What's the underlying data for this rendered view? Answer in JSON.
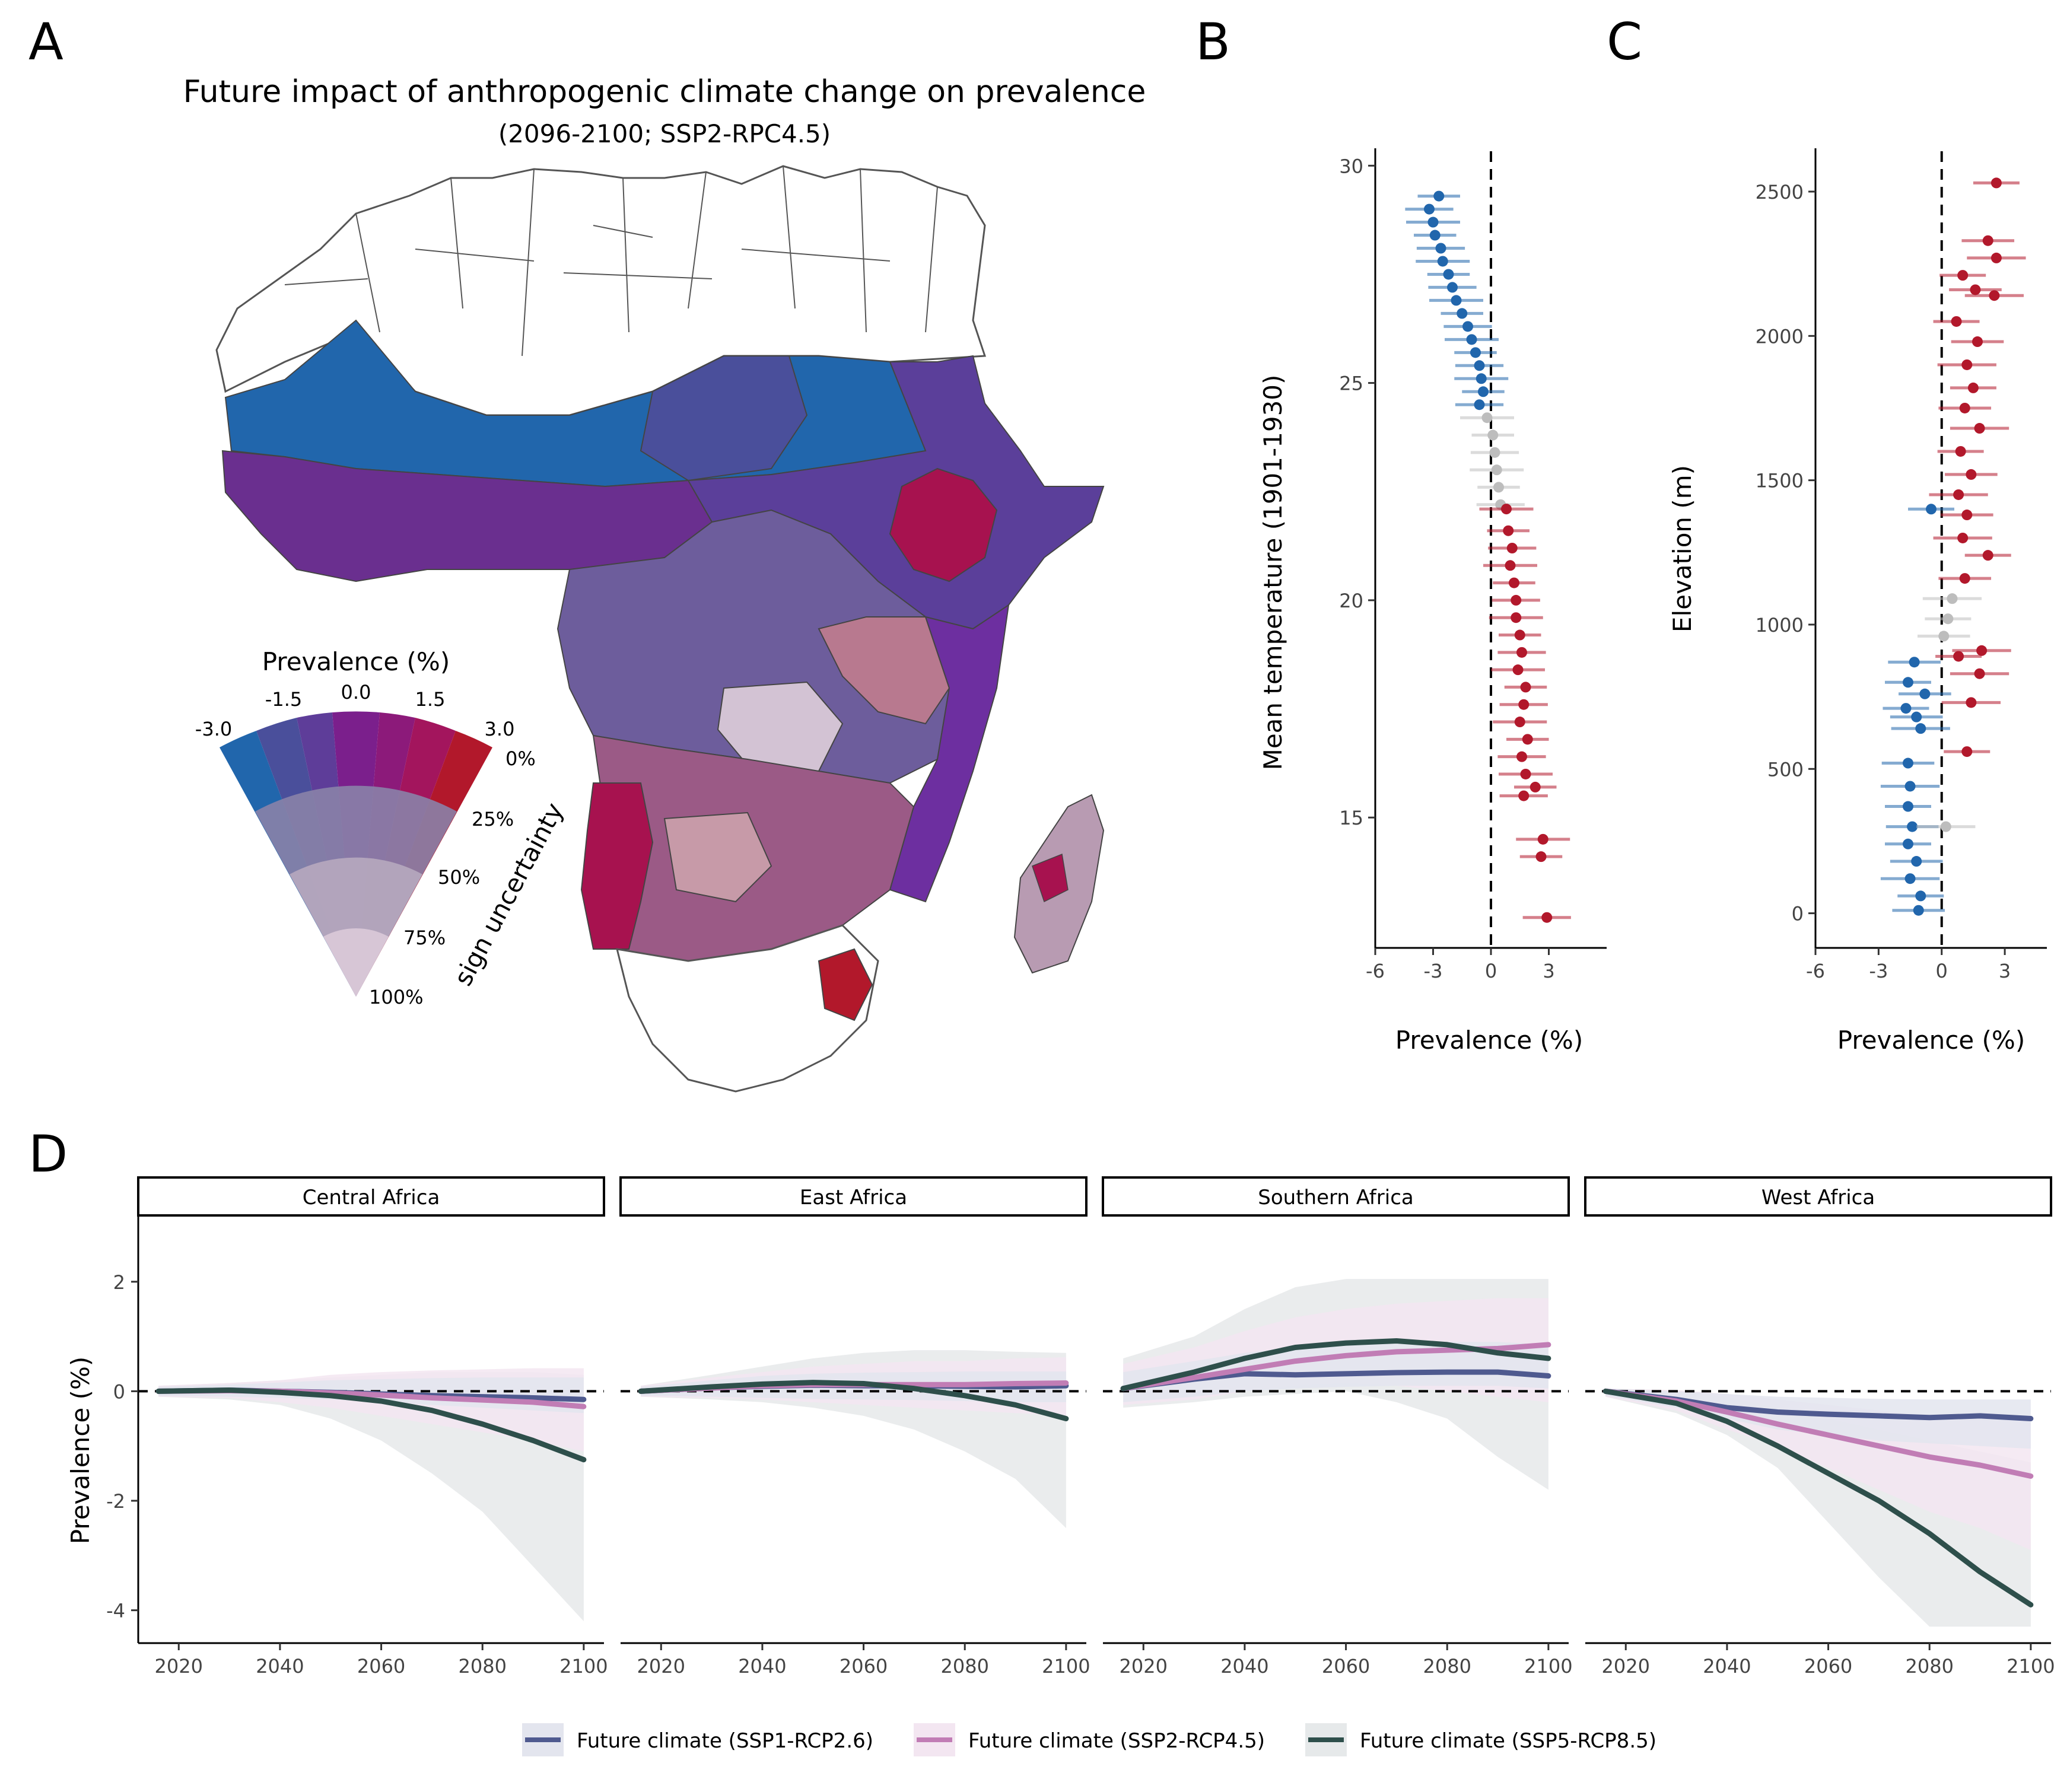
{
  "panels": {
    "a": "A",
    "b": "B",
    "c": "C",
    "d": "D"
  },
  "map": {
    "title": "Future impact of anthropogenic climate change on prevalence",
    "subtitle": "(2096-2100; SSP2-RPC4.5)",
    "legend": {
      "title": "Prevalence (%)",
      "value_ticks": [
        "-3.0",
        "-1.5",
        "0.0",
        "1.5",
        "3.0"
      ],
      "uncertainty_ticks": [
        "0%",
        "25%",
        "50%",
        "75%",
        "100%"
      ],
      "uncertainty_label": "sign uncertainty"
    },
    "colors": {
      "neg": "#2166ac",
      "mid": "#7b1f8c",
      "pos": "#b2182b",
      "uncertain": "#d7c6d6",
      "neutral": "#ffffff"
    }
  },
  "chart_data": [
    {
      "type": "scatter",
      "panel": "B",
      "xlabel": "Prevalence (%)",
      "ylabel": "Mean temperature (1901-1930)",
      "xlim": [
        -6,
        6
      ],
      "ylim": [
        12,
        30.4
      ],
      "xticks": [
        -6,
        -3,
        0,
        3
      ],
      "yticks": [
        15,
        20,
        25,
        30
      ],
      "reference_line_x": 0,
      "colors": {
        "negative": "#2166ac",
        "uncertain": "#bdbdbd",
        "positive": "#b2182b"
      },
      "points": [
        {
          "y": 29.3,
          "x": -2.7
        },
        {
          "y": 29.0,
          "x": -3.2
        },
        {
          "y": 28.7,
          "x": -3.0
        },
        {
          "y": 28.4,
          "x": -2.9
        },
        {
          "y": 28.1,
          "x": -2.6
        },
        {
          "y": 27.8,
          "x": -2.5
        },
        {
          "y": 27.5,
          "x": -2.2
        },
        {
          "y": 27.2,
          "x": -2.0
        },
        {
          "y": 26.9,
          "x": -1.8
        },
        {
          "y": 26.6,
          "x": -1.5
        },
        {
          "y": 26.3,
          "x": -1.2
        },
        {
          "y": 26.0,
          "x": -1.0
        },
        {
          "y": 25.7,
          "x": -0.8
        },
        {
          "y": 25.4,
          "x": -0.6
        },
        {
          "y": 25.1,
          "x": -0.5
        },
        {
          "y": 24.8,
          "x": -0.4
        },
        {
          "y": 24.5,
          "x": -0.6
        },
        {
          "y": 24.2,
          "x": -0.2
        },
        {
          "y": 23.8,
          "x": 0.1
        },
        {
          "y": 23.4,
          "x": 0.2
        },
        {
          "y": 23.0,
          "x": 0.3
        },
        {
          "y": 22.6,
          "x": 0.4
        },
        {
          "y": 22.2,
          "x": 0.5
        },
        {
          "y": 22.1,
          "x": 0.8
        },
        {
          "y": 21.6,
          "x": 0.9
        },
        {
          "y": 21.2,
          "x": 1.1
        },
        {
          "y": 20.8,
          "x": 1.0
        },
        {
          "y": 20.4,
          "x": 1.2
        },
        {
          "y": 20.0,
          "x": 1.3
        },
        {
          "y": 19.6,
          "x": 1.3
        },
        {
          "y": 19.2,
          "x": 1.5
        },
        {
          "y": 18.8,
          "x": 1.6
        },
        {
          "y": 18.4,
          "x": 1.4
        },
        {
          "y": 18.0,
          "x": 1.8
        },
        {
          "y": 17.6,
          "x": 1.7
        },
        {
          "y": 17.2,
          "x": 1.5
        },
        {
          "y": 16.8,
          "x": 1.9
        },
        {
          "y": 16.4,
          "x": 1.6
        },
        {
          "y": 16.0,
          "x": 1.8
        },
        {
          "y": 15.7,
          "x": 2.3
        },
        {
          "y": 15.5,
          "x": 1.7
        },
        {
          "y": 14.5,
          "x": 2.7
        },
        {
          "y": 14.1,
          "x": 2.6
        },
        {
          "y": 12.7,
          "x": 2.9
        }
      ]
    },
    {
      "type": "scatter",
      "panel": "C",
      "xlabel": "Prevalence (%)",
      "ylabel": "Elevation (m)",
      "xlim": [
        -6,
        5
      ],
      "ylim": [
        -120,
        2650
      ],
      "xticks": [
        -6,
        -3,
        0,
        3
      ],
      "yticks": [
        0,
        500,
        1000,
        1500,
        2000,
        2500
      ],
      "reference_line_x": 0,
      "colors": {
        "negative": "#2166ac",
        "uncertain": "#bdbdbd",
        "positive": "#b2182b"
      },
      "points": [
        {
          "y": 2530,
          "x": 2.6
        },
        {
          "y": 2330,
          "x": 2.2
        },
        {
          "y": 2270,
          "x": 2.6
        },
        {
          "y": 2210,
          "x": 1.0
        },
        {
          "y": 2160,
          "x": 1.6
        },
        {
          "y": 2140,
          "x": 2.5
        },
        {
          "y": 2050,
          "x": 0.7
        },
        {
          "y": 1980,
          "x": 1.7
        },
        {
          "y": 1900,
          "x": 1.2
        },
        {
          "y": 1820,
          "x": 1.5
        },
        {
          "y": 1750,
          "x": 1.1
        },
        {
          "y": 1680,
          "x": 1.8
        },
        {
          "y": 1600,
          "x": 0.9
        },
        {
          "y": 1520,
          "x": 1.4
        },
        {
          "y": 1450,
          "x": 0.8
        },
        {
          "y": 1380,
          "x": 1.2
        },
        {
          "y": 1300,
          "x": 1.0
        },
        {
          "y": 1240,
          "x": 2.2
        },
        {
          "y": 1160,
          "x": 1.1
        },
        {
          "y": 1090,
          "x": 0.5
        },
        {
          "y": 1020,
          "x": 0.3
        },
        {
          "y": 960,
          "x": 0.1
        },
        {
          "y": 1400,
          "x": -0.5
        },
        {
          "y": 910,
          "x": 1.9
        },
        {
          "y": 890,
          "x": 0.8
        },
        {
          "y": 870,
          "x": -1.3
        },
        {
          "y": 830,
          "x": 1.8
        },
        {
          "y": 800,
          "x": -1.6
        },
        {
          "y": 760,
          "x": -0.8
        },
        {
          "y": 730,
          "x": 1.4
        },
        {
          "y": 710,
          "x": -1.7
        },
        {
          "y": 680,
          "x": -1.2
        },
        {
          "y": 640,
          "x": -1.0
        },
        {
          "y": 560,
          "x": 1.2
        },
        {
          "y": 520,
          "x": -1.6
        },
        {
          "y": 440,
          "x": -1.5
        },
        {
          "y": 370,
          "x": -1.6
        },
        {
          "y": 300,
          "x": -1.4
        },
        {
          "y": 240,
          "x": -1.6
        },
        {
          "y": 180,
          "x": -1.2
        },
        {
          "y": 120,
          "x": -1.5
        },
        {
          "y": 60,
          "x": -1.0
        },
        {
          "y": 10,
          "x": -1.1
        },
        {
          "y": 300,
          "x": 0.2
        }
      ]
    },
    {
      "type": "line",
      "panel": "D",
      "ylabel": "Prevalence (%)",
      "xlim": [
        2012,
        2104
      ],
      "ylim": [
        -4.6,
        3.2
      ],
      "xticks": [
        2020,
        2040,
        2060,
        2080,
        2100
      ],
      "yticks": [
        -4,
        -2,
        0,
        2
      ],
      "reference_line_y": 0,
      "series_styles": [
        {
          "name": "Future climate (SSP1-RCP2.6)",
          "color": "#4f5a8f",
          "band": "#e3e5ee"
        },
        {
          "name": "Future climate (SSP2-RCP4.5)",
          "color": "#c17db5",
          "band": "#f3e6f1"
        },
        {
          "name": "Future climate (SSP5-RCP8.5)",
          "color": "#2e4f4b",
          "band": "#e6e9ea"
        }
      ],
      "facets": [
        {
          "name": "Central Africa",
          "x": [
            2016,
            2030,
            2040,
            2050,
            2060,
            2070,
            2080,
            2090,
            2100
          ],
          "series": [
            {
              "name": "Future climate (SSP1-RCP2.6)",
              "values": [
                0,
                0.02,
                0.0,
                -0.02,
                -0.05,
                -0.08,
                -0.1,
                -0.12,
                -0.15
              ]
            },
            {
              "name": "Future climate (SSP2-RCP4.5)",
              "values": [
                0,
                0.01,
                0.0,
                -0.03,
                -0.07,
                -0.12,
                -0.16,
                -0.2,
                -0.28
              ]
            },
            {
              "name": "Future climate (SSP5-RCP8.5)",
              "values": [
                0,
                0.02,
                -0.02,
                -0.08,
                -0.18,
                -0.35,
                -0.6,
                -0.9,
                -1.25
              ]
            }
          ],
          "bands": [
            {
              "lo": [
                -0.1,
                -0.15,
                -0.25,
                -0.5,
                -0.9,
                -1.5,
                -2.2,
                -3.2,
                -4.2
              ],
              "hi": [
                0.1,
                0.15,
                0.2,
                0.25,
                0.3,
                0.35,
                0.35,
                0.35,
                0.3
              ]
            },
            {
              "lo": [
                -0.1,
                -0.12,
                -0.2,
                -0.3,
                -0.45,
                -0.6,
                -0.75,
                -0.9,
                -1.1
              ],
              "hi": [
                0.1,
                0.15,
                0.2,
                0.3,
                0.35,
                0.38,
                0.4,
                0.42,
                0.42
              ]
            },
            {
              "lo": [
                -0.08,
                -0.1,
                -0.12,
                -0.15,
                -0.2,
                -0.25,
                -0.3,
                -0.35,
                -0.4
              ],
              "hi": [
                0.08,
                0.12,
                0.16,
                0.2,
                0.22,
                0.24,
                0.25,
                0.25,
                0.25
              ]
            }
          ]
        },
        {
          "name": "East Africa",
          "x": [
            2016,
            2030,
            2040,
            2050,
            2060,
            2070,
            2080,
            2090,
            2100
          ],
          "series": [
            {
              "name": "Future climate (SSP1-RCP2.6)",
              "values": [
                0,
                0.06,
                0.09,
                0.11,
                0.1,
                0.1,
                0.09,
                0.08,
                0.1
              ]
            },
            {
              "name": "Future climate (SSP2-RCP4.5)",
              "values": [
                0,
                0.06,
                0.1,
                0.12,
                0.12,
                0.12,
                0.12,
                0.14,
                0.15
              ]
            },
            {
              "name": "Future climate (SSP5-RCP8.5)",
              "values": [
                0,
                0.08,
                0.13,
                0.16,
                0.14,
                0.05,
                -0.08,
                -0.25,
                -0.5
              ]
            }
          ],
          "bands": [
            {
              "lo": [
                -0.1,
                -0.15,
                -0.2,
                -0.3,
                -0.45,
                -0.7,
                -1.1,
                -1.6,
                -2.5
              ],
              "hi": [
                0.1,
                0.3,
                0.45,
                0.6,
                0.7,
                0.75,
                0.75,
                0.72,
                0.7
              ]
            },
            {
              "lo": [
                -0.1,
                -0.12,
                -0.15,
                -0.2,
                -0.25,
                -0.3,
                -0.35,
                -0.4,
                -0.45
              ],
              "hi": [
                0.1,
                0.25,
                0.35,
                0.45,
                0.5,
                0.55,
                0.55,
                0.6,
                0.62
              ]
            },
            {
              "lo": [
                -0.08,
                -0.1,
                -0.12,
                -0.14,
                -0.15,
                -0.16,
                -0.18,
                -0.2,
                -0.2
              ],
              "hi": [
                0.08,
                0.2,
                0.28,
                0.32,
                0.34,
                0.35,
                0.36,
                0.36,
                0.36
              ]
            }
          ]
        },
        {
          "name": "Southern Africa",
          "x": [
            2016,
            2030,
            2040,
            2050,
            2060,
            2070,
            2080,
            2090,
            2100
          ],
          "series": [
            {
              "name": "Future climate (SSP1-RCP2.6)",
              "values": [
                0.05,
                0.22,
                0.32,
                0.3,
                0.32,
                0.34,
                0.35,
                0.35,
                0.28
              ]
            },
            {
              "name": "Future climate (SSP2-RCP4.5)",
              "values": [
                0.05,
                0.25,
                0.4,
                0.55,
                0.65,
                0.72,
                0.75,
                0.78,
                0.85
              ]
            },
            {
              "name": "Future climate (SSP5-RCP8.5)",
              "values": [
                0.05,
                0.35,
                0.6,
                0.8,
                0.88,
                0.92,
                0.85,
                0.7,
                0.6
              ]
            }
          ],
          "bands": [
            {
              "lo": [
                -0.3,
                -0.2,
                -0.1,
                -0.05,
                0.0,
                -0.2,
                -0.5,
                -1.2,
                -1.8
              ],
              "hi": [
                0.6,
                1.0,
                1.5,
                1.9,
                2.05,
                2.05,
                2.05,
                2.05,
                2.05
              ]
            },
            {
              "lo": [
                -0.25,
                -0.15,
                0.0,
                0.1,
                0.15,
                0.1,
                0.0,
                -0.1,
                -0.2
              ],
              "hi": [
                0.5,
                0.8,
                1.1,
                1.35,
                1.5,
                1.6,
                1.65,
                1.7,
                1.7
              ]
            },
            {
              "lo": [
                -0.2,
                -0.1,
                0.0,
                0.05,
                0.08,
                0.1,
                0.1,
                0.1,
                0.05
              ],
              "hi": [
                0.35,
                0.55,
                0.7,
                0.8,
                0.85,
                0.88,
                0.9,
                0.9,
                0.85
              ]
            }
          ]
        },
        {
          "name": "West Africa",
          "x": [
            2016,
            2030,
            2040,
            2050,
            2060,
            2070,
            2080,
            2090,
            2100
          ],
          "series": [
            {
              "name": "Future climate (SSP1-RCP2.6)",
              "values": [
                0,
                -0.15,
                -0.3,
                -0.38,
                -0.42,
                -0.45,
                -0.48,
                -0.45,
                -0.5
              ]
            },
            {
              "name": "Future climate (SSP2-RCP4.5)",
              "values": [
                0,
                -0.18,
                -0.38,
                -0.6,
                -0.8,
                -1.0,
                -1.2,
                -1.35,
                -1.55
              ]
            },
            {
              "name": "Future climate (SSP5-RCP8.5)",
              "values": [
                0,
                -0.22,
                -0.55,
                -1.0,
                -1.5,
                -2.0,
                -2.6,
                -3.3,
                -3.9
              ]
            }
          ],
          "bands": [
            {
              "lo": [
                -0.1,
                -0.4,
                -0.8,
                -1.4,
                -2.4,
                -3.4,
                -4.3,
                -4.3,
                -4.3
              ],
              "hi": [
                0.05,
                0.0,
                -0.1,
                -0.3,
                -0.5,
                -0.7,
                -0.9,
                -1.1,
                -1.3
              ]
            },
            {
              "lo": [
                -0.1,
                -0.35,
                -0.7,
                -1.0,
                -1.4,
                -1.8,
                -2.2,
                -2.5,
                -2.9
              ],
              "hi": [
                0.05,
                0.02,
                -0.05,
                -0.15,
                -0.25,
                -0.35,
                -0.45,
                -0.5,
                -0.55
              ]
            },
            {
              "lo": [
                -0.08,
                -0.3,
                -0.5,
                -0.7,
                -0.8,
                -0.9,
                -0.95,
                -1.0,
                -1.05
              ],
              "hi": [
                0.05,
                0.0,
                -0.05,
                -0.1,
                -0.12,
                -0.14,
                -0.15,
                -0.15,
                -0.15
              ]
            }
          ]
        }
      ]
    }
  ]
}
